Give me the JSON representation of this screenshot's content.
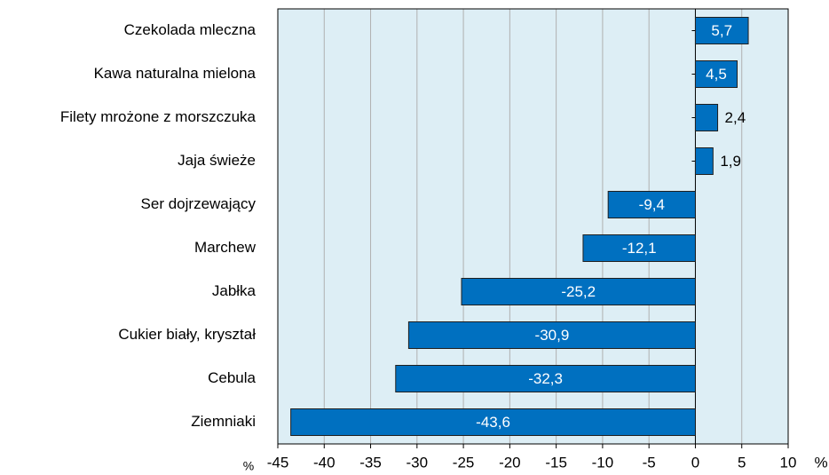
{
  "chart_data": {
    "type": "bar",
    "orientation": "horizontal",
    "categories": [
      "Czekolada mleczna",
      "Kawa naturalna mielona",
      "Filety mrożone z morszczuka",
      "Jaja świeże",
      "Ser dojrzewający",
      "Marchew",
      "Jabłka",
      "Cukier biały, kryształ",
      "Cebula",
      "Ziemniaki"
    ],
    "values": [
      5.7,
      4.5,
      2.4,
      1.9,
      -9.4,
      -12.1,
      -25.2,
      -30.9,
      -32.3,
      -43.6
    ],
    "value_labels": [
      "5,7",
      "4,5",
      "2,4",
      "1,9",
      "-9,4",
      "-12,1",
      "-25,2",
      "-30,9",
      "-32,3",
      "-43,6"
    ],
    "color": "#0070c0",
    "xlim": [
      -45,
      10
    ],
    "xticks": [
      -45,
      -40,
      -35,
      -30,
      -25,
      -20,
      -15,
      -10,
      -5,
      0,
      5,
      10
    ],
    "xlabels": [
      "%",
      "%"
    ],
    "grid": true
  }
}
